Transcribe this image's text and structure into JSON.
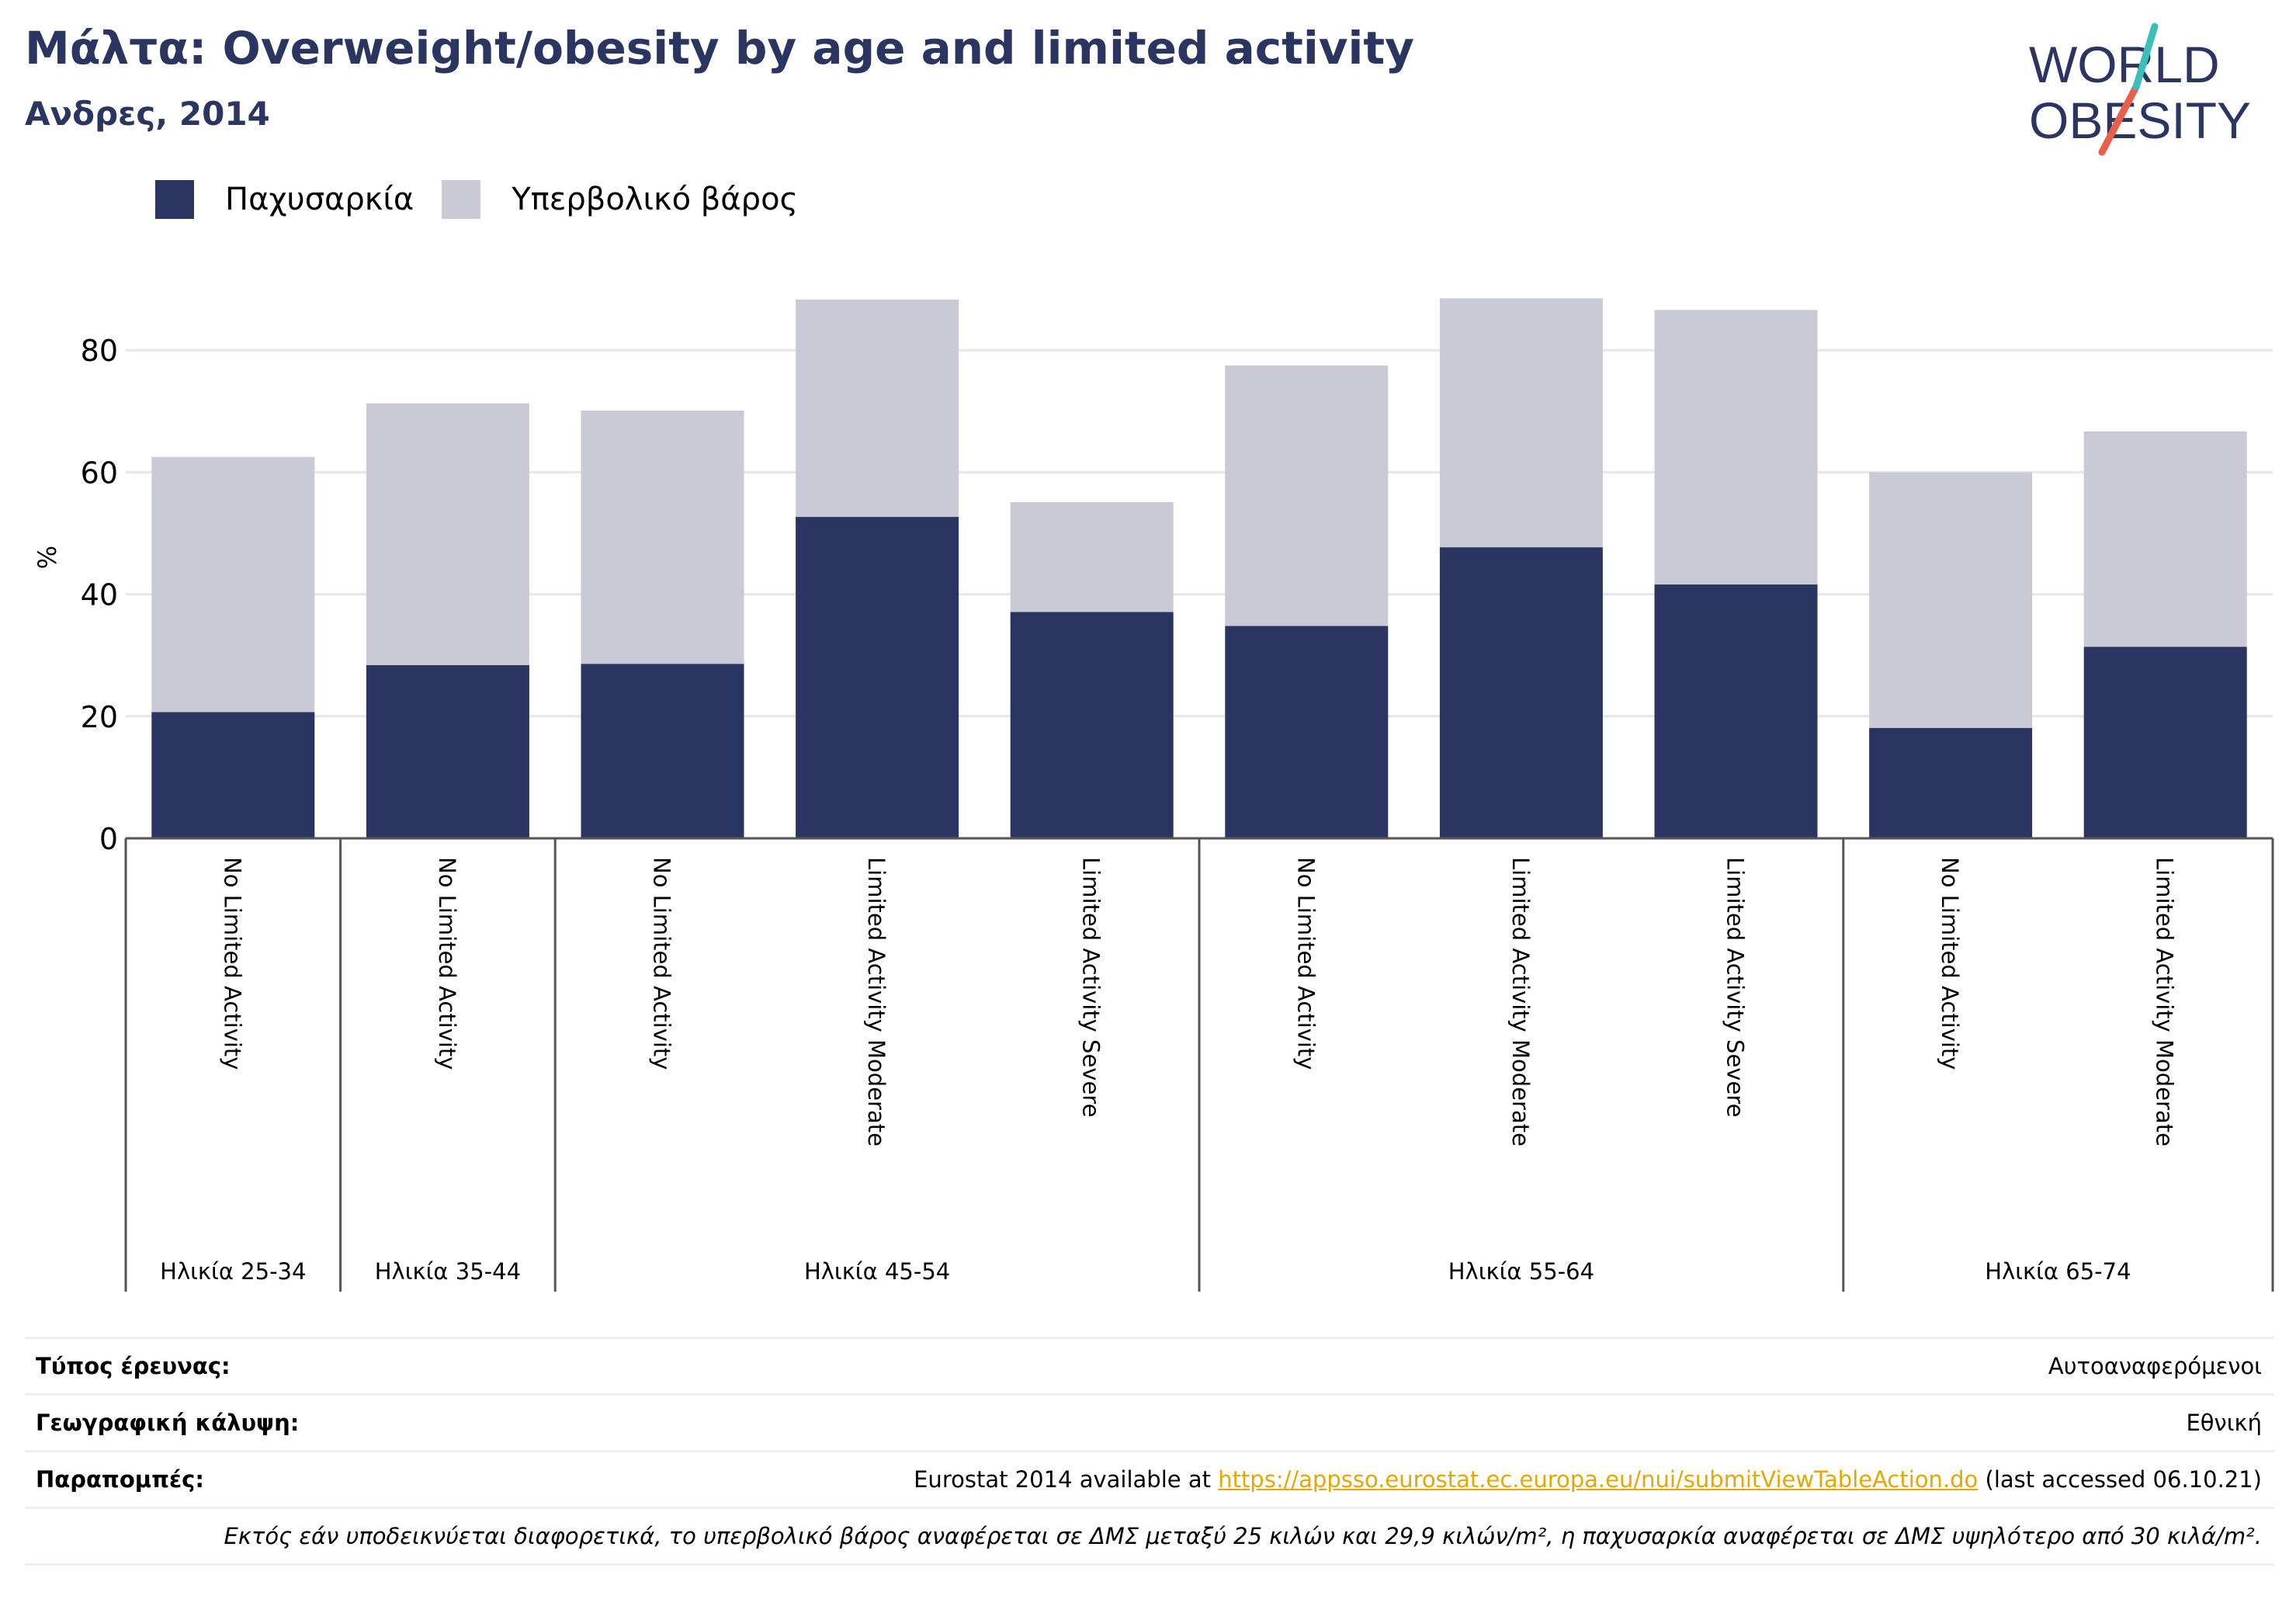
{
  "header": {
    "title": "Μάλτα: Overweight/obesity by age and limited activity",
    "subtitle": "Ανδρες, 2014"
  },
  "logo": {
    "line1": "WORLD",
    "line2": "OBESITY",
    "colors": {
      "text": "#2a3561",
      "slash_teal": "#3bbfb8",
      "slash_coral": "#e8604c"
    }
  },
  "legend": [
    {
      "label": "Παχυσαρκία",
      "color": "#2a3561"
    },
    {
      "label": "Υπερβολικό βάρος",
      "color": "#c9cad6"
    }
  ],
  "chart_data": {
    "type": "bar",
    "stacked": true,
    "ylabel": "%",
    "ylim": [
      0,
      90
    ],
    "yticks": [
      0,
      20,
      40,
      60,
      80
    ],
    "grid": true,
    "legend_position": "top-left",
    "categories": [
      "No Limited Activity",
      "No Limited Activity",
      "No Limited Activity",
      "Limited Activity Moderate",
      "Limited Activity Severe",
      "No Limited Activity",
      "Limited Activity Moderate",
      "Limited Activity Severe",
      "No Limited Activity",
      "Limited Activity Moderate"
    ],
    "groups": [
      {
        "label": "Ηλικία 25-34",
        "count": 1
      },
      {
        "label": "Ηλικία 35-44",
        "count": 1
      },
      {
        "label": "Ηλικία 45-54",
        "count": 3
      },
      {
        "label": "Ηλικία 55-64",
        "count": 3
      },
      {
        "label": "Ηλικία 65-74",
        "count": 2
      }
    ],
    "series": [
      {
        "name": "Παχυσαρκία",
        "color": "#2a3561",
        "values": [
          20.7,
          28.4,
          28.6,
          52.7,
          37.1,
          34.8,
          47.7,
          41.6,
          18.1,
          31.4
        ]
      },
      {
        "name": "Υπερβολικό βάρος",
        "color": "#c9cad6",
        "values": [
          41.8,
          42.9,
          41.5,
          35.6,
          18.0,
          42.7,
          40.8,
          45.0,
          41.9,
          35.3
        ]
      }
    ]
  },
  "footer": {
    "survey_type_label": "Τύπος έρευνας:",
    "survey_type_value": "Αυτοαναφερόμενοι",
    "coverage_label": "Γεωγραφική κάλυψη:",
    "coverage_value": "Εθνική",
    "references_label": "Παραπομπές:",
    "references_prefix": "Eurostat 2014 available at ",
    "references_link": "https://appsso.eurostat.ec.europa.eu/nui/submitViewTableAction.do",
    "references_suffix": " (last accessed 06.10.21)",
    "note": "Εκτός εάν υποδεικνύεται διαφορετικά, το υπερβολικό βάρος αναφέρεται σε ΔΜΣ μεταξύ 25 κιλών και 29,9 κιλών/m², η παχυσαρκία αναφέρεται σε ΔΜΣ υψηλότερο από 30 κιλά/m²."
  }
}
